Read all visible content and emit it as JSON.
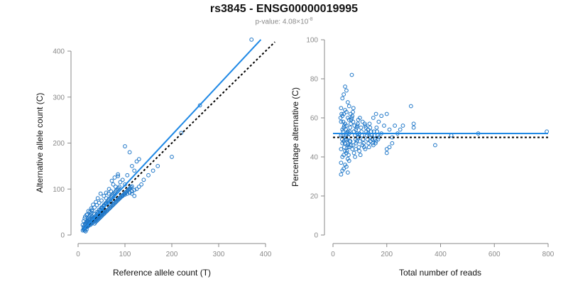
{
  "figure": {
    "title": "rs3845 - ENSG00000019995",
    "pvalue_label": "p-value: 4.08×10",
    "pvalue_exponent": "-8"
  },
  "colors": {
    "points": "#1f77c8",
    "fit_line": "#1e88e5",
    "reference_line": "#000000",
    "axis": "#8a8a8a"
  },
  "chart_data": [
    {
      "type": "scatter",
      "xlabel": "Reference allele count (T)",
      "ylabel": "Alternative allele count (C)",
      "xlim": [
        0,
        400
      ],
      "ylim": [
        0,
        420
      ],
      "xticks": [
        0,
        100,
        200,
        300,
        400
      ],
      "yticks": [
        0,
        100,
        200,
        300,
        400
      ],
      "grid": false,
      "fit_line": {
        "x": [
          10,
          390
        ],
        "y": [
          10,
          425
        ],
        "style": "solid"
      },
      "reference_line": {
        "x": [
          10,
          420
        ],
        "y": [
          10,
          420
        ],
        "style": "dotted"
      },
      "points": [
        [
          370,
          425
        ],
        [
          260,
          282
        ],
        [
          220,
          222
        ],
        [
          200,
          170
        ],
        [
          100,
          193
        ],
        [
          110,
          180
        ],
        [
          130,
          165
        ],
        [
          125,
          160
        ],
        [
          115,
          150
        ],
        [
          120,
          140
        ],
        [
          105,
          130
        ],
        [
          95,
          120
        ],
        [
          90,
          115
        ],
        [
          85,
          128
        ],
        [
          80,
          105
        ],
        [
          75,
          110
        ],
        [
          70,
          95
        ],
        [
          65,
          90
        ],
        [
          60,
          80
        ],
        [
          120,
          85
        ],
        [
          115,
          90
        ],
        [
          110,
          100
        ],
        [
          100,
          110
        ],
        [
          85,
          132
        ],
        [
          78,
          125
        ],
        [
          72,
          118
        ],
        [
          66,
          100
        ],
        [
          60,
          92
        ],
        [
          55,
          85
        ],
        [
          50,
          75
        ],
        [
          45,
          70
        ],
        [
          40,
          65
        ],
        [
          35,
          60
        ],
        [
          30,
          55
        ],
        [
          25,
          50
        ],
        [
          20,
          45
        ],
        [
          15,
          40
        ],
        [
          48,
          90
        ],
        [
          42,
          80
        ],
        [
          38,
          72
        ],
        [
          32,
          66
        ],
        [
          28,
          58
        ],
        [
          22,
          52
        ],
        [
          18,
          44
        ],
        [
          14,
          36
        ],
        [
          12,
          30
        ],
        [
          10,
          22
        ],
        [
          12,
          15
        ],
        [
          14,
          10
        ],
        [
          16,
          8
        ],
        [
          18,
          12
        ],
        [
          20,
          18
        ],
        [
          22,
          20
        ],
        [
          24,
          25
        ],
        [
          26,
          22
        ],
        [
          28,
          28
        ],
        [
          30,
          32
        ],
        [
          32,
          35
        ],
        [
          34,
          38
        ],
        [
          36,
          40
        ],
        [
          38,
          42
        ],
        [
          40,
          45
        ],
        [
          42,
          48
        ],
        [
          44,
          50
        ],
        [
          46,
          52
        ],
        [
          48,
          55
        ],
        [
          50,
          58
        ],
        [
          52,
          60
        ],
        [
          54,
          62
        ],
        [
          56,
          65
        ],
        [
          58,
          68
        ],
        [
          60,
          70
        ],
        [
          62,
          72
        ],
        [
          64,
          75
        ],
        [
          66,
          78
        ],
        [
          68,
          80
        ],
        [
          70,
          82
        ],
        [
          72,
          85
        ],
        [
          74,
          88
        ],
        [
          76,
          90
        ],
        [
          78,
          92
        ],
        [
          80,
          95
        ],
        [
          82,
          98
        ],
        [
          84,
          100
        ],
        [
          86,
          102
        ],
        [
          88,
          105
        ],
        [
          20,
          30
        ],
        [
          25,
          35
        ],
        [
          30,
          40
        ],
        [
          35,
          45
        ],
        [
          40,
          50
        ],
        [
          45,
          55
        ],
        [
          50,
          60
        ],
        [
          55,
          65
        ],
        [
          60,
          68
        ],
        [
          65,
          70
        ],
        [
          70,
          72
        ],
        [
          75,
          75
        ],
        [
          80,
          78
        ],
        [
          85,
          80
        ],
        [
          90,
          82
        ],
        [
          95,
          85
        ],
        [
          100,
          88
        ],
        [
          105,
          90
        ],
        [
          110,
          92
        ],
        [
          115,
          95
        ],
        [
          120,
          98
        ],
        [
          125,
          100
        ],
        [
          130,
          105
        ],
        [
          135,
          110
        ],
        [
          12,
          18
        ],
        [
          14,
          20
        ],
        [
          16,
          24
        ],
        [
          18,
          28
        ],
        [
          20,
          32
        ],
        [
          22,
          36
        ],
        [
          24,
          40
        ],
        [
          26,
          44
        ],
        [
          28,
          48
        ],
        [
          30,
          52
        ],
        [
          10,
          10
        ],
        [
          12,
          12
        ],
        [
          14,
          14
        ],
        [
          16,
          16
        ],
        [
          18,
          18
        ],
        [
          20,
          20
        ],
        [
          22,
          22
        ],
        [
          24,
          24
        ],
        [
          26,
          26
        ],
        [
          28,
          24
        ],
        [
          30,
          26
        ],
        [
          32,
          28
        ],
        [
          34,
          30
        ],
        [
          36,
          32
        ],
        [
          38,
          34
        ],
        [
          40,
          36
        ],
        [
          42,
          38
        ],
        [
          44,
          40
        ],
        [
          46,
          42
        ],
        [
          48,
          44
        ],
        [
          50,
          46
        ],
        [
          52,
          48
        ],
        [
          54,
          50
        ],
        [
          56,
          52
        ],
        [
          58,
          54
        ],
        [
          15,
          25
        ],
        [
          17,
          27
        ],
        [
          19,
          29
        ],
        [
          21,
          31
        ],
        [
          23,
          33
        ],
        [
          25,
          28
        ],
        [
          27,
          30
        ],
        [
          29,
          34
        ],
        [
          31,
          36
        ],
        [
          33,
          38
        ],
        [
          35,
          25
        ],
        [
          37,
          28
        ],
        [
          39,
          30
        ],
        [
          41,
          32
        ],
        [
          43,
          34
        ],
        [
          45,
          36
        ],
        [
          47,
          38
        ],
        [
          49,
          40
        ],
        [
          51,
          42
        ],
        [
          53,
          44
        ],
        [
          55,
          46
        ],
        [
          57,
          48
        ],
        [
          59,
          50
        ],
        [
          61,
          52
        ],
        [
          63,
          54
        ],
        [
          65,
          56
        ],
        [
          67,
          58
        ],
        [
          69,
          60
        ],
        [
          71,
          62
        ],
        [
          73,
          64
        ],
        [
          75,
          66
        ],
        [
          77,
          68
        ],
        [
          79,
          70
        ],
        [
          81,
          72
        ],
        [
          83,
          74
        ],
        [
          85,
          76
        ],
        [
          87,
          78
        ],
        [
          89,
          80
        ],
        [
          91,
          82
        ],
        [
          93,
          84
        ],
        [
          95,
          86
        ],
        [
          97,
          88
        ],
        [
          99,
          90
        ],
        [
          101,
          92
        ],
        [
          103,
          94
        ],
        [
          105,
          96
        ],
        [
          107,
          98
        ],
        [
          109,
          100
        ],
        [
          111,
          102
        ],
        [
          113,
          104
        ],
        [
          115,
          106
        ],
        [
          140,
          120
        ],
        [
          150,
          130
        ],
        [
          160,
          140
        ],
        [
          170,
          150
        ]
      ]
    },
    {
      "type": "scatter",
      "xlabel": "Total number of reads",
      "ylabel": "Percentage alternative (C)",
      "xlim": [
        0,
        800
      ],
      "ylim": [
        0,
        100
      ],
      "xticks": [
        0,
        200,
        400,
        600,
        800
      ],
      "yticks": [
        0,
        20,
        40,
        60,
        80,
        100
      ],
      "grid": false,
      "fit_line": {
        "x": [
          0,
          800
        ],
        "y": [
          52,
          52
        ],
        "style": "solid"
      },
      "reference_line": {
        "x": [
          0,
          800
        ],
        "y": [
          50,
          50
        ],
        "style": "dotted"
      },
      "points": [
        [
          70,
          82
        ],
        [
          45,
          76
        ],
        [
          50,
          74
        ],
        [
          40,
          72
        ],
        [
          35,
          70
        ],
        [
          55,
          68
        ],
        [
          60,
          66
        ],
        [
          30,
          65
        ],
        [
          45,
          64
        ],
        [
          50,
          63
        ],
        [
          40,
          62
        ],
        [
          35,
          61
        ],
        [
          55,
          60
        ],
        [
          60,
          59
        ],
        [
          30,
          58
        ],
        [
          45,
          57
        ],
        [
          50,
          56
        ],
        [
          40,
          55
        ],
        [
          35,
          54
        ],
        [
          55,
          53
        ],
        [
          60,
          52
        ],
        [
          30,
          51
        ],
        [
          45,
          50
        ],
        [
          50,
          49
        ],
        [
          40,
          48
        ],
        [
          35,
          47
        ],
        [
          55,
          46
        ],
        [
          60,
          45
        ],
        [
          30,
          44
        ],
        [
          45,
          43
        ],
        [
          50,
          42
        ],
        [
          40,
          41
        ],
        [
          35,
          40
        ],
        [
          55,
          39
        ],
        [
          60,
          38
        ],
        [
          30,
          37
        ],
        [
          45,
          36
        ],
        [
          50,
          35
        ],
        [
          40,
          34
        ],
        [
          35,
          33
        ],
        [
          55,
          32
        ],
        [
          30,
          31
        ],
        [
          65,
          62
        ],
        [
          70,
          60
        ],
        [
          75,
          58
        ],
        [
          80,
          56
        ],
        [
          85,
          54
        ],
        [
          90,
          52
        ],
        [
          95,
          50
        ],
        [
          100,
          48
        ],
        [
          110,
          46
        ],
        [
          120,
          44
        ],
        [
          130,
          52
        ],
        [
          140,
          50
        ],
        [
          150,
          60
        ],
        [
          160,
          62
        ],
        [
          170,
          58
        ],
        [
          180,
          61
        ],
        [
          190,
          56
        ],
        [
          200,
          62
        ],
        [
          210,
          54
        ],
        [
          220,
          50
        ],
        [
          230,
          56
        ],
        [
          240,
          52
        ],
        [
          250,
          54
        ],
        [
          260,
          56
        ],
        [
          290,
          66
        ],
        [
          300,
          57
        ],
        [
          300,
          55
        ],
        [
          200,
          42
        ],
        [
          210,
          45
        ],
        [
          220,
          47
        ],
        [
          200,
          44
        ],
        [
          380,
          46
        ],
        [
          440,
          51
        ],
        [
          540,
          52
        ],
        [
          795,
          53
        ],
        [
          120,
          56
        ],
        [
          130,
          54
        ],
        [
          140,
          48
        ],
        [
          150,
          46
        ],
        [
          160,
          48
        ],
        [
          170,
          50
        ],
        [
          180,
          52
        ],
        [
          110,
          58
        ],
        [
          100,
          60
        ],
        [
          90,
          56
        ],
        [
          85,
          44
        ],
        [
          75,
          46
        ],
        [
          65,
          48
        ],
        [
          28,
          60
        ],
        [
          32,
          62
        ],
        [
          38,
          58
        ],
        [
          42,
          56
        ],
        [
          48,
          54
        ],
        [
          52,
          52
        ],
        [
          58,
          50
        ],
        [
          62,
          48
        ],
        [
          68,
          46
        ],
        [
          72,
          44
        ],
        [
          78,
          42
        ],
        [
          82,
          40
        ],
        [
          88,
          48
        ],
        [
          92,
          50
        ],
        [
          98,
          52
        ],
        [
          34,
          49
        ],
        [
          36,
          51
        ],
        [
          38,
          53
        ],
        [
          42,
          45
        ],
        [
          44,
          47
        ],
        [
          46,
          49
        ],
        [
          48,
          51
        ],
        [
          52,
          43
        ],
        [
          54,
          45
        ],
        [
          56,
          47
        ],
        [
          58,
          41
        ],
        [
          62,
          53
        ],
        [
          64,
          55
        ],
        [
          66,
          57
        ],
        [
          68,
          59
        ],
        [
          72,
          61
        ],
        [
          74,
          63
        ],
        [
          76,
          65
        ],
        [
          78,
          53
        ],
        [
          82,
          51
        ],
        [
          84,
          49
        ],
        [
          86,
          47
        ],
        [
          88,
          55
        ],
        [
          92,
          57
        ],
        [
          94,
          59
        ],
        [
          96,
          45
        ],
        [
          98,
          43
        ],
        [
          102,
          41
        ],
        [
          104,
          55
        ],
        [
          106,
          53
        ],
        [
          108,
          51
        ],
        [
          112,
          49
        ],
        [
          114,
          47
        ],
        [
          116,
          45
        ],
        [
          118,
          57
        ],
        [
          122,
          55
        ],
        [
          124,
          53
        ],
        [
          126,
          51
        ],
        [
          128,
          49
        ],
        [
          132,
          47
        ],
        [
          134,
          45
        ],
        [
          136,
          57
        ],
        [
          138,
          55
        ],
        [
          142,
          53
        ],
        [
          144,
          51
        ],
        [
          146,
          49
        ],
        [
          148,
          47
        ],
        [
          152,
          53
        ],
        [
          154,
          51
        ],
        [
          156,
          49
        ],
        [
          158,
          47
        ],
        [
          162,
          55
        ],
        [
          164,
          53
        ],
        [
          166,
          51
        ],
        [
          168,
          49
        ]
      ]
    }
  ]
}
